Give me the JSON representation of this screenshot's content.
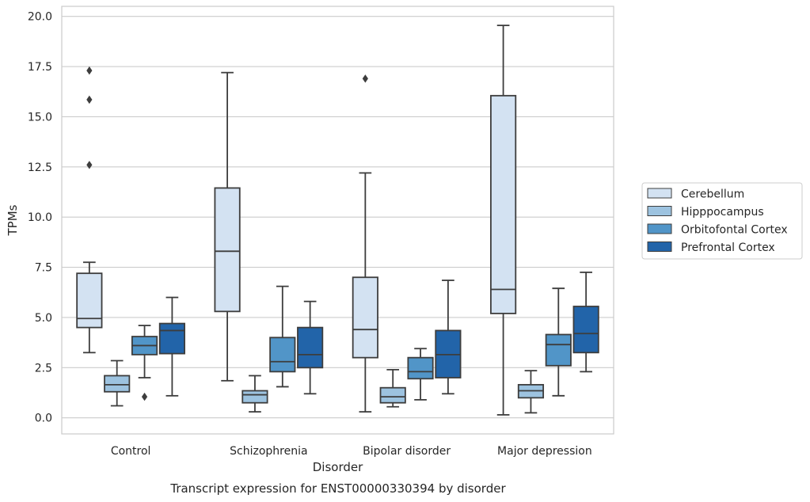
{
  "chart_data": {
    "type": "box",
    "title": "Transcript expression for ENST00000330394 by disorder",
    "xlabel": "Disorder",
    "ylabel": "TPMs",
    "ylim": [
      -0.8,
      20.5
    ],
    "yticks": [
      0.0,
      2.5,
      5.0,
      7.5,
      10.0,
      12.5,
      15.0,
      17.5,
      20.0
    ],
    "ytick_labels": [
      "0.0",
      "2.5",
      "5.0",
      "7.5",
      "10.0",
      "12.5",
      "15.0",
      "17.5",
      "20.0"
    ],
    "grid": "horizontal",
    "legend_position": "right",
    "categories": [
      "Control",
      "Schizophrenia",
      "Bipolar disorder",
      "Major depression"
    ],
    "series": [
      {
        "name": "Cerebellum",
        "color": "#d3e2f2",
        "boxes": [
          {
            "whisker_low": 3.25,
            "q1": 4.5,
            "median": 4.95,
            "q3": 7.2,
            "whisker_high": 7.75,
            "outliers": [
              12.6,
              15.85,
              17.3
            ]
          },
          {
            "whisker_low": 1.85,
            "q1": 5.3,
            "median": 8.3,
            "q3": 11.45,
            "whisker_high": 17.2,
            "outliers": []
          },
          {
            "whisker_low": 0.3,
            "q1": 3.0,
            "median": 4.4,
            "q3": 7.0,
            "whisker_high": 12.2,
            "outliers": [
              16.9
            ]
          },
          {
            "whisker_low": 0.15,
            "q1": 5.2,
            "median": 6.4,
            "q3": 16.05,
            "whisker_high": 19.55,
            "outliers": []
          }
        ]
      },
      {
        "name": "Hipppocampus",
        "color": "#9dc3e0",
        "boxes": [
          {
            "whisker_low": 0.6,
            "q1": 1.3,
            "median": 1.65,
            "q3": 2.1,
            "whisker_high": 2.85,
            "outliers": []
          },
          {
            "whisker_low": 0.3,
            "q1": 0.75,
            "median": 1.15,
            "q3": 1.35,
            "whisker_high": 2.1,
            "outliers": []
          },
          {
            "whisker_low": 0.55,
            "q1": 0.75,
            "median": 1.05,
            "q3": 1.5,
            "whisker_high": 2.4,
            "outliers": []
          },
          {
            "whisker_low": 0.25,
            "q1": 1.0,
            "median": 1.35,
            "q3": 1.65,
            "whisker_high": 2.35,
            "outliers": []
          }
        ]
      },
      {
        "name": "Orbitofontal Cortex",
        "color": "#5195c8",
        "boxes": [
          {
            "whisker_low": 2.0,
            "q1": 3.15,
            "median": 3.6,
            "q3": 4.05,
            "whisker_high": 4.6,
            "outliers": [
              1.05
            ]
          },
          {
            "whisker_low": 1.55,
            "q1": 2.3,
            "median": 2.8,
            "q3": 4.0,
            "whisker_high": 6.55,
            "outliers": []
          },
          {
            "whisker_low": 0.9,
            "q1": 1.95,
            "median": 2.3,
            "q3": 3.0,
            "whisker_high": 3.45,
            "outliers": []
          },
          {
            "whisker_low": 1.1,
            "q1": 2.6,
            "median": 3.65,
            "q3": 4.15,
            "whisker_high": 6.45,
            "outliers": []
          }
        ]
      },
      {
        "name": "Prefrontal Cortex",
        "color": "#2264a9",
        "boxes": [
          {
            "whisker_low": 1.1,
            "q1": 3.2,
            "median": 4.35,
            "q3": 4.7,
            "whisker_high": 6.0,
            "outliers": []
          },
          {
            "whisker_low": 1.2,
            "q1": 2.5,
            "median": 3.15,
            "q3": 4.5,
            "whisker_high": 5.8,
            "outliers": []
          },
          {
            "whisker_low": 1.2,
            "q1": 2.0,
            "median": 3.15,
            "q3": 4.35,
            "whisker_high": 6.85,
            "outliers": []
          },
          {
            "whisker_low": 2.3,
            "q1": 3.25,
            "median": 4.2,
            "q3": 5.55,
            "whisker_high": 7.25,
            "outliers": []
          }
        ]
      }
    ]
  }
}
